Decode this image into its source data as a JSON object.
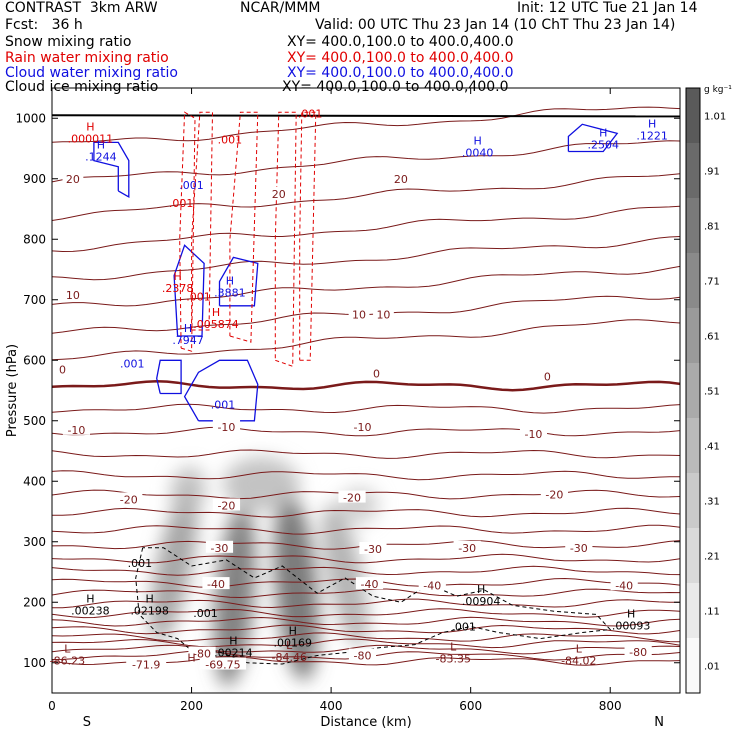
{
  "header": {
    "model": "CONTRAST  3km ARW",
    "fcst": "Fcst:   36 h",
    "center": "NCAR/MMM",
    "init": "Init: 12 UTC Tue 21 Jan 14",
    "valid": "Valid: 00 UTC Thu 23 Jan 14 (10 ChT Thu 23 Jan 14)"
  },
  "legend": [
    {
      "label": "Snow mixing ratio",
      "xy": "XY= 400.0,100.0 to 400.0,400.0",
      "color": "#000000"
    },
    {
      "label": "Rain water mixing ratio",
      "xy": "XY= 400.0,100.0 to 400.0,400.0",
      "color": "#e00000"
    },
    {
      "label": "Cloud water mixing ratio",
      "xy": "XY= 400.0,100.0 to 400.0,400.0",
      "color": "#1010e0"
    },
    {
      "label": "Cloud ice mixing ratio",
      "xy": "XY= 400.0,100.0 to 400.0,400.0",
      "color": "#000000"
    }
  ],
  "colors": {
    "temp": "#7a1a1a",
    "rain": "#e00000",
    "cloud_water": "#1010e0",
    "snow": "#000000"
  },
  "chart_data": {
    "type": "cross-section",
    "xlabel": "Distance (km)",
    "ylabel": "Pressure (hPa)",
    "xlim": [
      0,
      900
    ],
    "ylim": [
      1050,
      50
    ],
    "x_ticks": [
      0,
      200,
      400,
      600,
      800
    ],
    "y_ticks": [
      100,
      200,
      300,
      400,
      500,
      600,
      700,
      800,
      900,
      1000
    ],
    "x_end_labels": {
      "left": "S",
      "right": "N"
    },
    "colorbar": {
      "unit": "g kg⁻¹",
      "levels": [
        "1.01",
        ".91",
        ".81",
        ".71",
        ".61",
        ".51",
        ".41",
        ".31",
        ".21",
        ".11",
        ".01"
      ]
    },
    "temperature_labels": [
      {
        "x": 135,
        "p": 97,
        "text": "-71.9"
      },
      {
        "x": 245,
        "p": 97,
        "text": "-69.75"
      },
      {
        "x": 215,
        "p": 115,
        "text": "-80"
      },
      {
        "x": 445,
        "p": 112,
        "text": "-80"
      },
      {
        "x": 840,
        "p": 118,
        "text": "-80"
      },
      {
        "x": 235,
        "p": 230,
        "text": "-40"
      },
      {
        "x": 455,
        "p": 230,
        "text": "-40"
      },
      {
        "x": 545,
        "p": 228,
        "text": "-40"
      },
      {
        "x": 820,
        "p": 228,
        "text": "-40"
      },
      {
        "x": 240,
        "p": 290,
        "text": "-30"
      },
      {
        "x": 460,
        "p": 288,
        "text": "-30"
      },
      {
        "x": 595,
        "p": 290,
        "text": "-30"
      },
      {
        "x": 755,
        "p": 290,
        "text": "-30"
      },
      {
        "x": 110,
        "p": 370,
        "text": "-20"
      },
      {
        "x": 250,
        "p": 360,
        "text": "-20"
      },
      {
        "x": 430,
        "p": 373,
        "text": "-20"
      },
      {
        "x": 720,
        "p": 378,
        "text": "-20"
      },
      {
        "x": 35,
        "p": 485,
        "text": "-10"
      },
      {
        "x": 250,
        "p": 490,
        "text": "-10"
      },
      {
        "x": 445,
        "p": 490,
        "text": "-10"
      },
      {
        "x": 690,
        "p": 478,
        "text": "-10"
      },
      {
        "x": 15,
        "p": 585,
        "text": "0"
      },
      {
        "x": 465,
        "p": 578,
        "text": "0"
      },
      {
        "x": 710,
        "p": 573,
        "text": "0"
      },
      {
        "x": 30,
        "p": 708,
        "text": "10"
      },
      {
        "x": 440,
        "p": 676,
        "text": "10"
      },
      {
        "x": 475,
        "p": 676,
        "text": "10"
      },
      {
        "x": 30,
        "p": 900,
        "text": "20"
      },
      {
        "x": 325,
        "p": 875,
        "text": "20"
      },
      {
        "x": 500,
        "p": 900,
        "text": "20"
      }
    ],
    "extrema_labels": [
      {
        "x": 22,
        "p": 112,
        "sym": "L",
        "val": "-86.23",
        "color": "#7a1a1a"
      },
      {
        "x": 200,
        "p": 97,
        "sym": "H",
        "val": "",
        "color": "#7a1a1a"
      },
      {
        "x": 340,
        "p": 118,
        "sym": "L",
        "val": "-84.46",
        "color": "#7a1a1a"
      },
      {
        "x": 575,
        "p": 115,
        "sym": "L",
        "val": "-83.35",
        "color": "#7a1a1a"
      },
      {
        "x": 755,
        "p": 112,
        "sym": "L",
        "val": "-84.02",
        "color": "#7a1a1a"
      },
      {
        "x": 260,
        "p": 125,
        "sym": "H",
        "val": ".00214",
        "color": "#000000"
      },
      {
        "x": 345,
        "p": 142,
        "sym": "H",
        "val": ".00169",
        "color": "#000000"
      },
      {
        "x": 55,
        "p": 195,
        "sym": "H",
        "val": ".00238",
        "color": "#000000"
      },
      {
        "x": 140,
        "p": 195,
        "sym": "H",
        "val": ".02198",
        "color": "#000000"
      },
      {
        "x": 615,
        "p": 210,
        "sym": "H",
        "val": ".00904",
        "color": "#000000"
      },
      {
        "x": 830,
        "p": 170,
        "sym": "H",
        "val": ".00093",
        "color": "#000000"
      },
      {
        "x": 195,
        "p": 642,
        "sym": "H",
        "val": ".7947",
        "color": "#1010e0"
      },
      {
        "x": 255,
        "p": 720,
        "sym": "H",
        "val": ".3881",
        "color": "#1010e0"
      },
      {
        "x": 235,
        "p": 668,
        "sym": "H",
        "val": ".005874",
        "color": "#e00000"
      },
      {
        "x": 180,
        "p": 728,
        "sym": "H",
        "val": ".2378",
        "color": "#e00000"
      },
      {
        "x": 70,
        "p": 945,
        "sym": "H",
        "val": ".1244",
        "color": "#1010e0"
      },
      {
        "x": 55,
        "p": 975,
        "sym": "H",
        "val": ".000011",
        "color": "#e00000"
      },
      {
        "x": 610,
        "p": 952,
        "sym": "H",
        "val": ".0040",
        "color": "#1010e0"
      },
      {
        "x": 790,
        "p": 965,
        "sym": "H",
        "val": ".2504",
        "color": "#1010e0"
      },
      {
        "x": 860,
        "p": 980,
        "sym": "H",
        "val": ".1221",
        "color": "#1010e0"
      }
    ],
    "contour_labels": [
      {
        "x": 126,
        "p": 265,
        "text": ".001",
        "color": "#000000"
      },
      {
        "x": 220,
        "p": 182,
        "text": ".001",
        "color": "#000000"
      },
      {
        "x": 590,
        "p": 160,
        "text": ".001",
        "color": "#000000"
      },
      {
        "x": 245,
        "p": 527,
        "text": ".001",
        "color": "#1010e0"
      },
      {
        "x": 115,
        "p": 595,
        "text": ".001",
        "color": "#1010e0"
      },
      {
        "x": 210,
        "p": 705,
        "text": ".001",
        "color": "#e00000"
      },
      {
        "x": 185,
        "p": 860,
        "text": ".001",
        "color": "#e00000"
      },
      {
        "x": 200,
        "p": 890,
        "text": ".001",
        "color": "#1010e0"
      },
      {
        "x": 255,
        "p": 965,
        "text": ".001",
        "color": "#e00000"
      },
      {
        "x": 370,
        "p": 1008,
        "text": ".001",
        "color": "#e00000"
      }
    ],
    "snow_shading": [
      {
        "x": 175,
        "p": 260,
        "rx": 25,
        "rp": 130,
        "rot": 12,
        "value": 0.5
      },
      {
        "x": 262,
        "p": 210,
        "rx": 28,
        "rp": 150,
        "rot": 5,
        "value": 0.75
      },
      {
        "x": 350,
        "p": 225,
        "rx": 30,
        "rp": 155,
        "rot": -5,
        "value": 0.8
      },
      {
        "x": 420,
        "p": 245,
        "rx": 25,
        "rp": 120,
        "rot": -12,
        "value": 0.4
      },
      {
        "x": 300,
        "p": 395,
        "rx": 55,
        "rp": 45,
        "rot": 0,
        "value": 0.3
      },
      {
        "x": 195,
        "p": 385,
        "rx": 25,
        "rp": 40,
        "rot": 10,
        "value": 0.3
      },
      {
        "x": 440,
        "p": 360,
        "rx": 28,
        "rp": 30,
        "rot": -10,
        "value": 0.2
      }
    ]
  }
}
